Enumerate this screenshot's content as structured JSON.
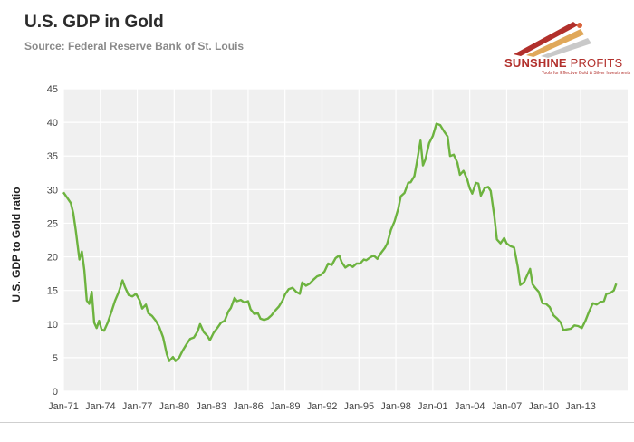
{
  "header": {
    "title": "U.S. GDP in Gold",
    "subtitle": "Source: Federal Reserve Bank of St. Louis"
  },
  "logo": {
    "name_bold": "SUNSHINE",
    "name_light": "PROFITS",
    "tagline": "Tools for Effective Gold & Silver Investments",
    "colors": [
      "#b2302c",
      "#e0a85a",
      "#c9c9c9"
    ]
  },
  "colors": {
    "line": "#6db33f",
    "plot_bg": "#f0f0f0",
    "grid": "#ffffff",
    "axis_text": "#444444"
  },
  "chart_data": {
    "type": "line",
    "title": "U.S. GDP in Gold",
    "xlabel": "",
    "ylabel": "U.S. GDP to Gold ratio",
    "ylim": [
      0,
      45
    ],
    "xlim": [
      1971.0,
      2015.4
    ],
    "yticks": [
      0,
      5,
      10,
      15,
      20,
      25,
      30,
      35,
      40,
      45
    ],
    "xticks": [
      {
        "x": 1971,
        "label": "Jan-71"
      },
      {
        "x": 1974,
        "label": "Jan-74"
      },
      {
        "x": 1977,
        "label": "Jan-77"
      },
      {
        "x": 1980,
        "label": "Jan-80"
      },
      {
        "x": 1983,
        "label": "Jan-83"
      },
      {
        "x": 1986,
        "label": "Jan-86"
      },
      {
        "x": 1989,
        "label": "Jan-89"
      },
      {
        "x": 1992,
        "label": "Jan-92"
      },
      {
        "x": 1995,
        "label": "Jan-95"
      },
      {
        "x": 1998,
        "label": "Jan-98"
      },
      {
        "x": 2001,
        "label": "Jan-01"
      },
      {
        "x": 2004,
        "label": "Jan-04"
      },
      {
        "x": 2007,
        "label": "Jan-07"
      },
      {
        "x": 2010,
        "label": "Jan-10"
      },
      {
        "x": 2013,
        "label": "Jan-13"
      }
    ],
    "grid": true,
    "legend": "none",
    "series": [
      {
        "points": [
          [
            1971.0,
            29.6
          ],
          [
            1971.3,
            28.8
          ],
          [
            1971.6,
            28.0
          ],
          [
            1971.8,
            26.5
          ],
          [
            1972.0,
            24.0
          ],
          [
            1972.3,
            19.6
          ],
          [
            1972.5,
            20.8
          ],
          [
            1972.7,
            18.0
          ],
          [
            1972.9,
            13.5
          ],
          [
            1973.1,
            13.0
          ],
          [
            1973.3,
            14.8
          ],
          [
            1973.5,
            10.2
          ],
          [
            1973.7,
            9.4
          ],
          [
            1973.9,
            10.5
          ],
          [
            1974.1,
            9.2
          ],
          [
            1974.3,
            9.0
          ],
          [
            1974.6,
            10.2
          ],
          [
            1974.9,
            11.8
          ],
          [
            1975.2,
            13.5
          ],
          [
            1975.5,
            14.8
          ],
          [
            1975.8,
            16.5
          ],
          [
            1976.0,
            15.5
          ],
          [
            1976.3,
            14.3
          ],
          [
            1976.6,
            14.1
          ],
          [
            1976.9,
            14.5
          ],
          [
            1977.2,
            13.5
          ],
          [
            1977.4,
            12.3
          ],
          [
            1977.7,
            12.9
          ],
          [
            1977.9,
            11.6
          ],
          [
            1978.2,
            11.2
          ],
          [
            1978.5,
            10.5
          ],
          [
            1978.8,
            9.5
          ],
          [
            1979.1,
            8.0
          ],
          [
            1979.4,
            5.5
          ],
          [
            1979.6,
            4.5
          ],
          [
            1979.9,
            5.1
          ],
          [
            1980.1,
            4.5
          ],
          [
            1980.4,
            5.0
          ],
          [
            1980.7,
            6.1
          ],
          [
            1981.0,
            7.0
          ],
          [
            1981.3,
            7.8
          ],
          [
            1981.6,
            8.0
          ],
          [
            1981.9,
            8.9
          ],
          [
            1982.1,
            10.0
          ],
          [
            1982.4,
            8.8
          ],
          [
            1982.7,
            8.2
          ],
          [
            1982.9,
            7.6
          ],
          [
            1983.2,
            8.7
          ],
          [
            1983.5,
            9.4
          ],
          [
            1983.8,
            10.2
          ],
          [
            1984.1,
            10.5
          ],
          [
            1984.4,
            11.9
          ],
          [
            1984.6,
            12.4
          ],
          [
            1984.9,
            13.9
          ],
          [
            1985.1,
            13.4
          ],
          [
            1985.4,
            13.6
          ],
          [
            1985.7,
            13.2
          ],
          [
            1986.0,
            13.4
          ],
          [
            1986.2,
            12.2
          ],
          [
            1986.5,
            11.5
          ],
          [
            1986.8,
            11.6
          ],
          [
            1987.0,
            10.8
          ],
          [
            1987.3,
            10.6
          ],
          [
            1987.6,
            10.8
          ],
          [
            1987.9,
            11.3
          ],
          [
            1988.2,
            12.0
          ],
          [
            1988.5,
            12.6
          ],
          [
            1988.8,
            13.5
          ],
          [
            1989.0,
            14.4
          ],
          [
            1989.3,
            15.2
          ],
          [
            1989.6,
            15.4
          ],
          [
            1989.9,
            14.8
          ],
          [
            1990.2,
            14.5
          ],
          [
            1990.4,
            16.2
          ],
          [
            1990.7,
            15.7
          ],
          [
            1991.0,
            16.0
          ],
          [
            1991.3,
            16.6
          ],
          [
            1991.6,
            17.1
          ],
          [
            1991.9,
            17.3
          ],
          [
            1992.2,
            17.8
          ],
          [
            1992.5,
            19.0
          ],
          [
            1992.8,
            18.8
          ],
          [
            1993.1,
            19.8
          ],
          [
            1993.4,
            20.2
          ],
          [
            1993.6,
            19.2
          ],
          [
            1993.9,
            18.4
          ],
          [
            1994.2,
            18.8
          ],
          [
            1994.5,
            18.5
          ],
          [
            1994.8,
            19.0
          ],
          [
            1995.1,
            19.0
          ],
          [
            1995.4,
            19.6
          ],
          [
            1995.6,
            19.5
          ],
          [
            1995.9,
            19.9
          ],
          [
            1996.2,
            20.2
          ],
          [
            1996.5,
            19.7
          ],
          [
            1996.8,
            20.6
          ],
          [
            1997.1,
            21.3
          ],
          [
            1997.3,
            22.0
          ],
          [
            1997.6,
            24.0
          ],
          [
            1997.9,
            25.3
          ],
          [
            1998.2,
            27.2
          ],
          [
            1998.4,
            29.0
          ],
          [
            1998.7,
            29.5
          ],
          [
            1999.0,
            31.0
          ],
          [
            1999.2,
            31.1
          ],
          [
            1999.5,
            32.0
          ],
          [
            1999.7,
            34.0
          ],
          [
            2000.0,
            37.3
          ],
          [
            2000.2,
            33.6
          ],
          [
            2000.4,
            34.5
          ],
          [
            2000.7,
            36.9
          ],
          [
            2001.0,
            38.0
          ],
          [
            2001.3,
            39.8
          ],
          [
            2001.6,
            39.6
          ],
          [
            2001.9,
            38.7
          ],
          [
            2002.2,
            37.9
          ],
          [
            2002.4,
            35.0
          ],
          [
            2002.7,
            35.2
          ],
          [
            2003.0,
            34.0
          ],
          [
            2003.2,
            32.2
          ],
          [
            2003.5,
            32.8
          ],
          [
            2003.8,
            31.5
          ],
          [
            2004.0,
            30.2
          ],
          [
            2004.2,
            29.4
          ],
          [
            2004.5,
            31.0
          ],
          [
            2004.7,
            30.9
          ],
          [
            2004.9,
            29.1
          ],
          [
            2005.2,
            30.2
          ],
          [
            2005.5,
            30.4
          ],
          [
            2005.7,
            29.8
          ],
          [
            2006.0,
            26.0
          ],
          [
            2006.2,
            22.6
          ],
          [
            2006.5,
            22.0
          ],
          [
            2006.8,
            22.8
          ],
          [
            2007.0,
            22.0
          ],
          [
            2007.3,
            21.6
          ],
          [
            2007.6,
            21.4
          ],
          [
            2007.9,
            18.5
          ],
          [
            2008.1,
            15.8
          ],
          [
            2008.4,
            16.2
          ],
          [
            2008.6,
            17.0
          ],
          [
            2008.9,
            18.2
          ],
          [
            2009.1,
            15.9
          ],
          [
            2009.4,
            15.2
          ],
          [
            2009.6,
            14.8
          ],
          [
            2009.9,
            13.1
          ],
          [
            2010.2,
            13.0
          ],
          [
            2010.5,
            12.5
          ],
          [
            2010.8,
            11.3
          ],
          [
            2011.1,
            10.8
          ],
          [
            2011.4,
            10.2
          ],
          [
            2011.6,
            9.1
          ],
          [
            2011.9,
            9.2
          ],
          [
            2012.2,
            9.3
          ],
          [
            2012.5,
            9.8
          ],
          [
            2012.8,
            9.7
          ],
          [
            2013.1,
            9.4
          ],
          [
            2013.4,
            10.5
          ],
          [
            2013.7,
            11.9
          ],
          [
            2014.0,
            13.1
          ],
          [
            2014.3,
            12.9
          ],
          [
            2014.6,
            13.3
          ],
          [
            2014.9,
            13.4
          ],
          [
            2015.1,
            14.5
          ],
          [
            2015.4,
            14.6
          ],
          [
            2015.7,
            15.0
          ],
          [
            2015.9,
            16.0
          ]
        ]
      }
    ]
  }
}
